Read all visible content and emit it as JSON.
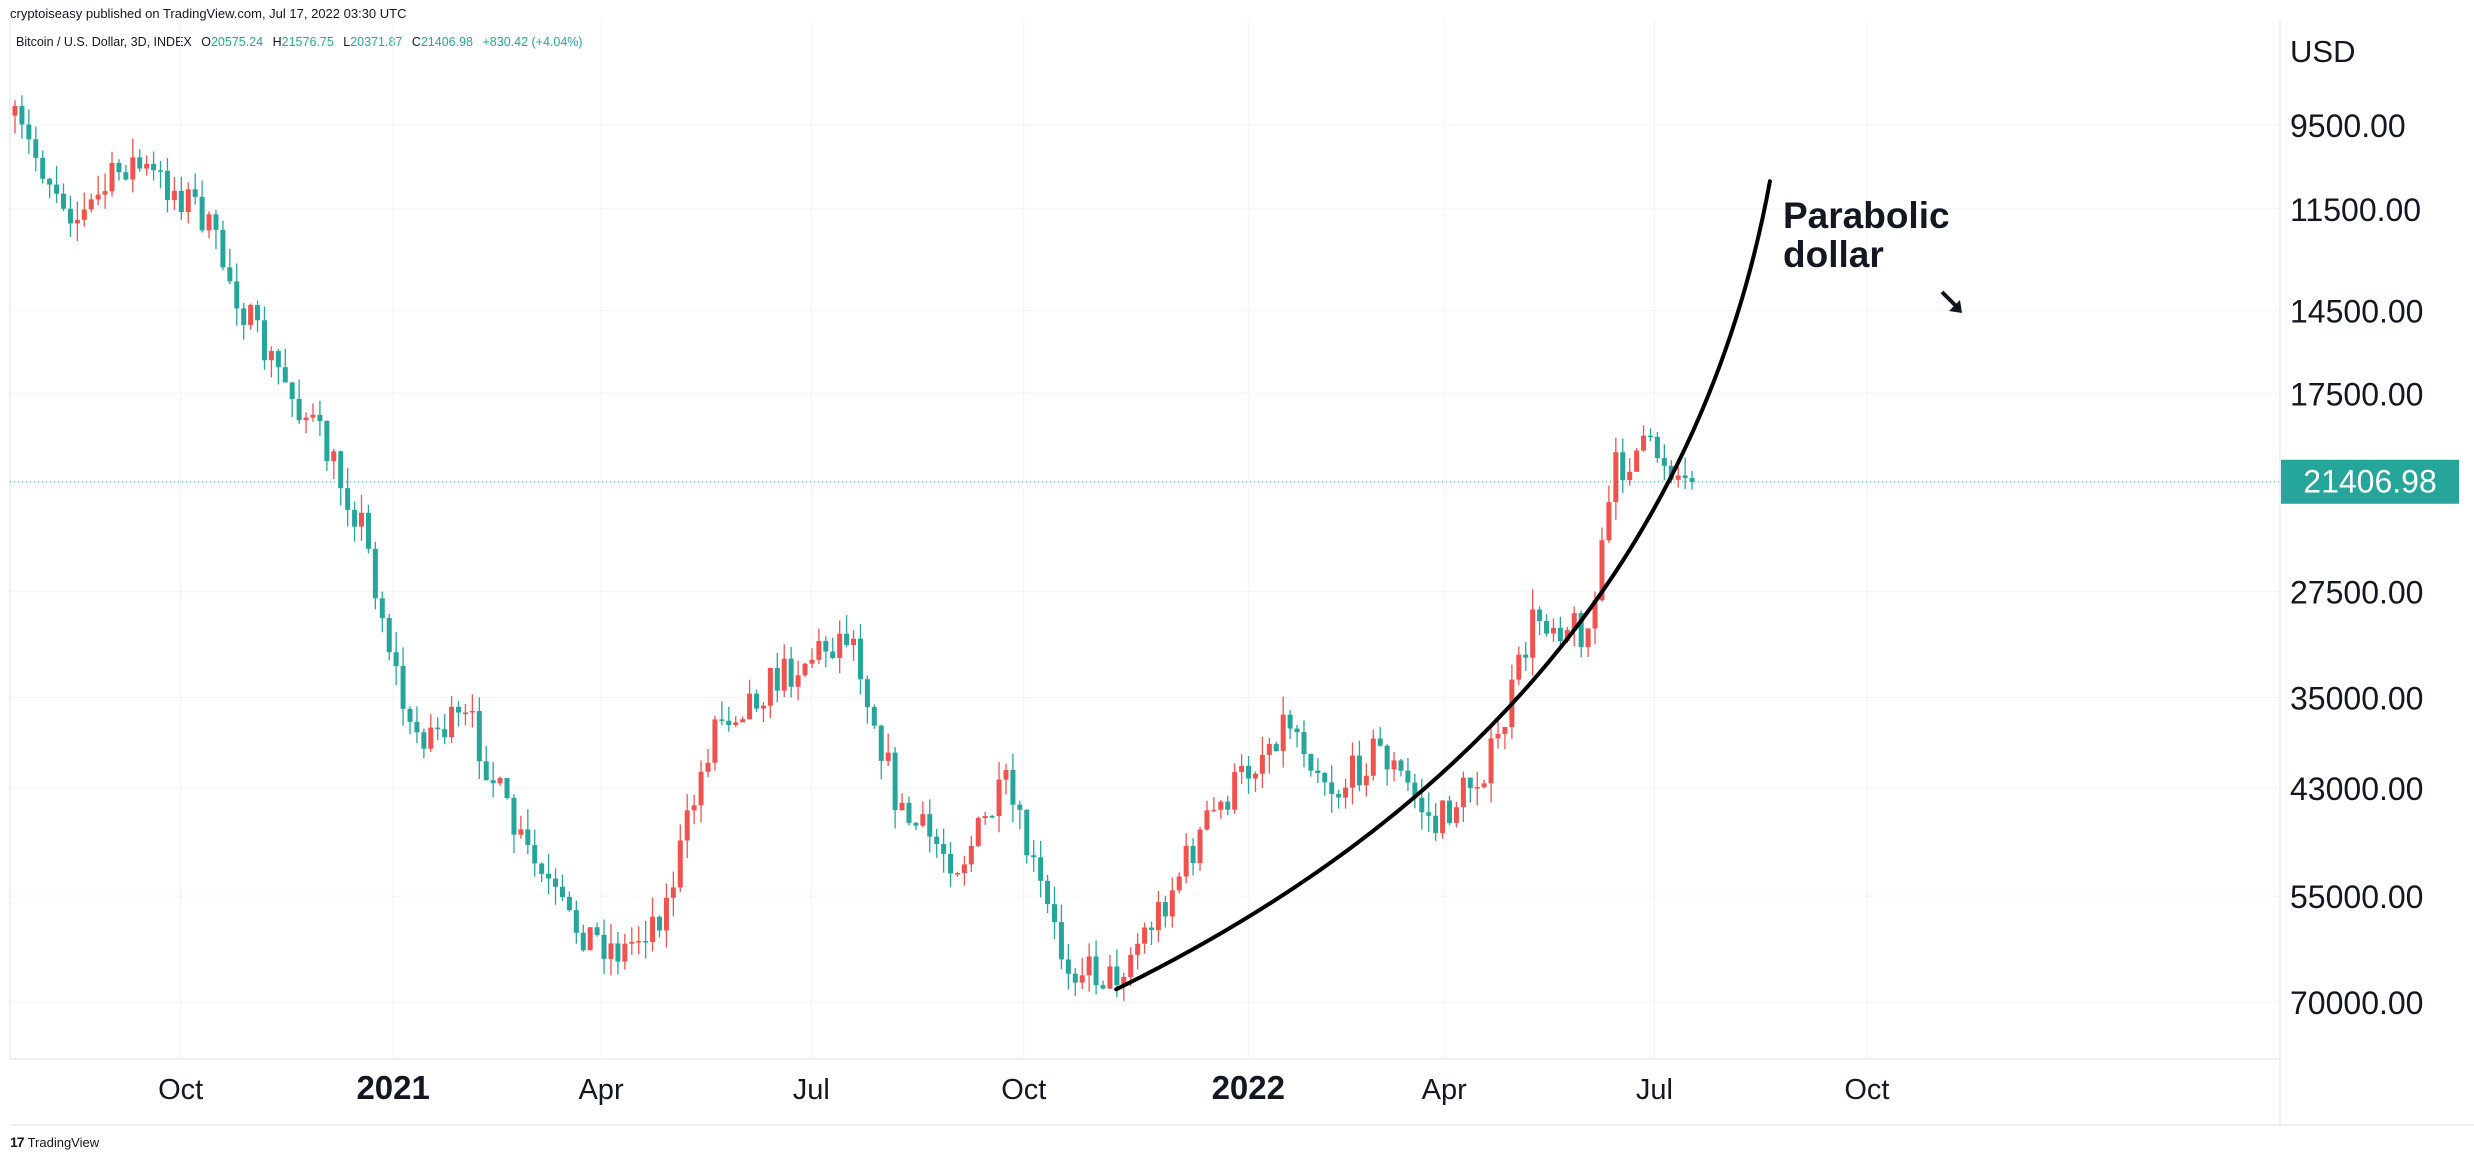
{
  "header": {
    "published": "cryptoiseasy published on TradingView.com, Jul 17, 2022 03:30 UTC",
    "symbol": "Bitcoin / U.S. Dollar, 3D, INDEX",
    "o_label": "O",
    "o_value": "20575.24",
    "h_label": "H",
    "h_value": "21576.75",
    "l_label": "L",
    "l_value": "20371.87",
    "c_label": "C",
    "c_value": "21406.98",
    "change": "+830.42 (+4.04%)"
  },
  "footer": {
    "logo_glyph": "17",
    "brand": "TradingView"
  },
  "colors": {
    "up": "#26a69a",
    "down": "#ef5350",
    "grid": "#f0f3fa",
    "curve": "#000000"
  },
  "chart_data": {
    "type": "candlestick",
    "title": "",
    "y_unit": "USD",
    "y_scale": "inverted-log",
    "y_ticks": [
      "9500.00",
      "11500.00",
      "14500.00",
      "17500.00",
      "27500.00",
      "35000.00",
      "43000.00",
      "55000.00",
      "70000.00"
    ],
    "y_tick_values": [
      9500,
      11500,
      14500,
      17500,
      27500,
      35000,
      43000,
      55000,
      70000
    ],
    "ylim": [
      8300,
      78000
    ],
    "x_ticks": [
      "Oct",
      "2021",
      "Apr",
      "Jul",
      "Oct",
      "2022",
      "Apr",
      "Jul",
      "Oct"
    ],
    "x_tick_bold": [
      false,
      true,
      false,
      false,
      false,
      true,
      false,
      false,
      false
    ],
    "last_price": "21406.98",
    "last_price_value": 21406.98,
    "annotation": {
      "line1": "Parabolic",
      "line2": "dollar"
    },
    "curve_anchor_points": [
      {
        "date": "2021-11-10",
        "price": 68000
      },
      {
        "date": "2022-05-20",
        "price": 31500
      },
      {
        "date": "2022-08-20",
        "price": 10800
      }
    ],
    "price_path_keypoints": [
      {
        "date": "2020-07-20",
        "price": 9300
      },
      {
        "date": "2020-08-20",
        "price": 11800
      },
      {
        "date": "2020-09-10",
        "price": 10300
      },
      {
        "date": "2020-10-10",
        "price": 11400
      },
      {
        "date": "2020-11-05",
        "price": 15500
      },
      {
        "date": "2020-11-30",
        "price": 19000
      },
      {
        "date": "2020-12-20",
        "price": 23500
      },
      {
        "date": "2021-01-10",
        "price": 38000
      },
      {
        "date": "2021-02-05",
        "price": 37000
      },
      {
        "date": "2021-02-25",
        "price": 48000
      },
      {
        "date": "2021-03-20",
        "price": 58500
      },
      {
        "date": "2021-04-12",
        "price": 62500
      },
      {
        "date": "2021-05-01",
        "price": 56000
      },
      {
        "date": "2021-05-22",
        "price": 37000
      },
      {
        "date": "2021-06-22",
        "price": 33000
      },
      {
        "date": "2021-07-20",
        "price": 30000
      },
      {
        "date": "2021-08-10",
        "price": 45500
      },
      {
        "date": "2021-09-05",
        "price": 51000
      },
      {
        "date": "2021-09-25",
        "price": 43000
      },
      {
        "date": "2021-10-20",
        "price": 63500
      },
      {
        "date": "2021-11-10",
        "price": 66500
      },
      {
        "date": "2021-11-30",
        "price": 57000
      },
      {
        "date": "2021-12-20",
        "price": 47000
      },
      {
        "date": "2022-01-25",
        "price": 36500
      },
      {
        "date": "2022-02-15",
        "price": 43500
      },
      {
        "date": "2022-03-05",
        "price": 39000
      },
      {
        "date": "2022-03-30",
        "price": 47000
      },
      {
        "date": "2022-04-25",
        "price": 39500
      },
      {
        "date": "2022-05-12",
        "price": 29000
      },
      {
        "date": "2022-06-05",
        "price": 30000
      },
      {
        "date": "2022-06-15",
        "price": 21000
      },
      {
        "date": "2022-06-25",
        "price": 20000
      },
      {
        "date": "2022-07-05",
        "price": 20000
      },
      {
        "date": "2022-07-16",
        "price": 21406.98
      }
    ]
  }
}
